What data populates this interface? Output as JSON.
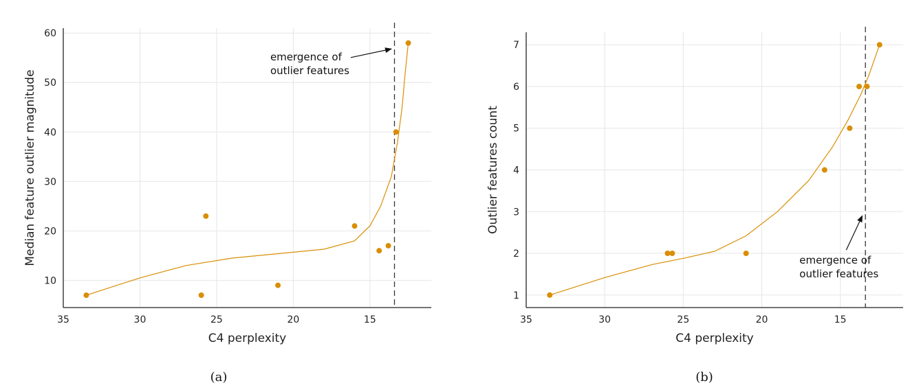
{
  "chart_data": [
    {
      "type": "scatter",
      "caption": "(a)",
      "xlabel": "C4 perplexity",
      "ylabel": "Median feature outlier magnitude",
      "x_reversed": true,
      "xlim": [
        35,
        11
      ],
      "ylim": [
        4.5,
        61
      ],
      "xticks": [
        35,
        30,
        25,
        20,
        15
      ],
      "yticks": [
        10,
        20,
        30,
        40,
        50,
        60
      ],
      "grid": true,
      "marker_color": "#D98E04",
      "series": [
        {
          "points": [
            {
              "x": 33.5,
              "y": 7
            },
            {
              "x": 26.0,
              "y": 7
            },
            {
              "x": 25.7,
              "y": 23
            },
            {
              "x": 21.0,
              "y": 9
            },
            {
              "x": 16.0,
              "y": 21
            },
            {
              "x": 14.4,
              "y": 16
            },
            {
              "x": 13.8,
              "y": 17
            },
            {
              "x": 13.3,
              "y": 40
            },
            {
              "x": 12.5,
              "y": 58
            }
          ]
        }
      ],
      "trend_line": [
        {
          "x": 33.5,
          "y": 7
        },
        {
          "x": 30,
          "y": 10.5
        },
        {
          "x": 27,
          "y": 13
        },
        {
          "x": 24,
          "y": 14.5
        },
        {
          "x": 21,
          "y": 15.4
        },
        {
          "x": 18,
          "y": 16.3
        },
        {
          "x": 16,
          "y": 18
        },
        {
          "x": 15,
          "y": 21
        },
        {
          "x": 14.3,
          "y": 25
        },
        {
          "x": 13.6,
          "y": 31
        },
        {
          "x": 13.2,
          "y": 38
        },
        {
          "x": 12.9,
          "y": 45
        },
        {
          "x": 12.7,
          "y": 52
        },
        {
          "x": 12.5,
          "y": 58
        }
      ],
      "vline_x": 13.4,
      "annotation": {
        "lines": [
          "emergence of",
          "outlier features"
        ],
        "text_at": {
          "x": 21.5,
          "y": 54.5
        },
        "arrow_to": {
          "x": 13.6,
          "y": 56.8
        }
      }
    },
    {
      "type": "scatter",
      "caption": "(b)",
      "xlabel": "C4 perplexity",
      "ylabel": "Outlier features count",
      "x_reversed": true,
      "xlim": [
        35,
        11
      ],
      "ylim": [
        0.7,
        7.3
      ],
      "xticks": [
        35,
        30,
        25,
        20,
        15
      ],
      "yticks": [
        1,
        2,
        3,
        4,
        5,
        6,
        7
      ],
      "grid": true,
      "marker_color": "#D98E04",
      "series": [
        {
          "points": [
            {
              "x": 33.5,
              "y": 1
            },
            {
              "x": 26.0,
              "y": 2
            },
            {
              "x": 25.7,
              "y": 2
            },
            {
              "x": 21.0,
              "y": 2
            },
            {
              "x": 16.0,
              "y": 4
            },
            {
              "x": 14.4,
              "y": 5
            },
            {
              "x": 13.8,
              "y": 6
            },
            {
              "x": 13.3,
              "y": 6
            },
            {
              "x": 12.5,
              "y": 7
            }
          ]
        }
      ],
      "trend_line": [
        {
          "x": 33.5,
          "y": 1
        },
        {
          "x": 30,
          "y": 1.42
        },
        {
          "x": 27,
          "y": 1.73
        },
        {
          "x": 25,
          "y": 1.88
        },
        {
          "x": 23,
          "y": 2.05
        },
        {
          "x": 21,
          "y": 2.42
        },
        {
          "x": 19,
          "y": 3.0
        },
        {
          "x": 17,
          "y": 3.75
        },
        {
          "x": 15.5,
          "y": 4.55
        },
        {
          "x": 14.5,
          "y": 5.2
        },
        {
          "x": 13.7,
          "y": 5.8
        },
        {
          "x": 13.2,
          "y": 6.25
        },
        {
          "x": 12.5,
          "y": 7
        }
      ],
      "vline_x": 13.4,
      "annotation": {
        "lines": [
          "emergence of",
          "outlier features"
        ],
        "text_at": {
          "x": 17.6,
          "y": 1.75
        },
        "arrow_to": {
          "x": 13.6,
          "y": 2.9
        }
      }
    }
  ]
}
